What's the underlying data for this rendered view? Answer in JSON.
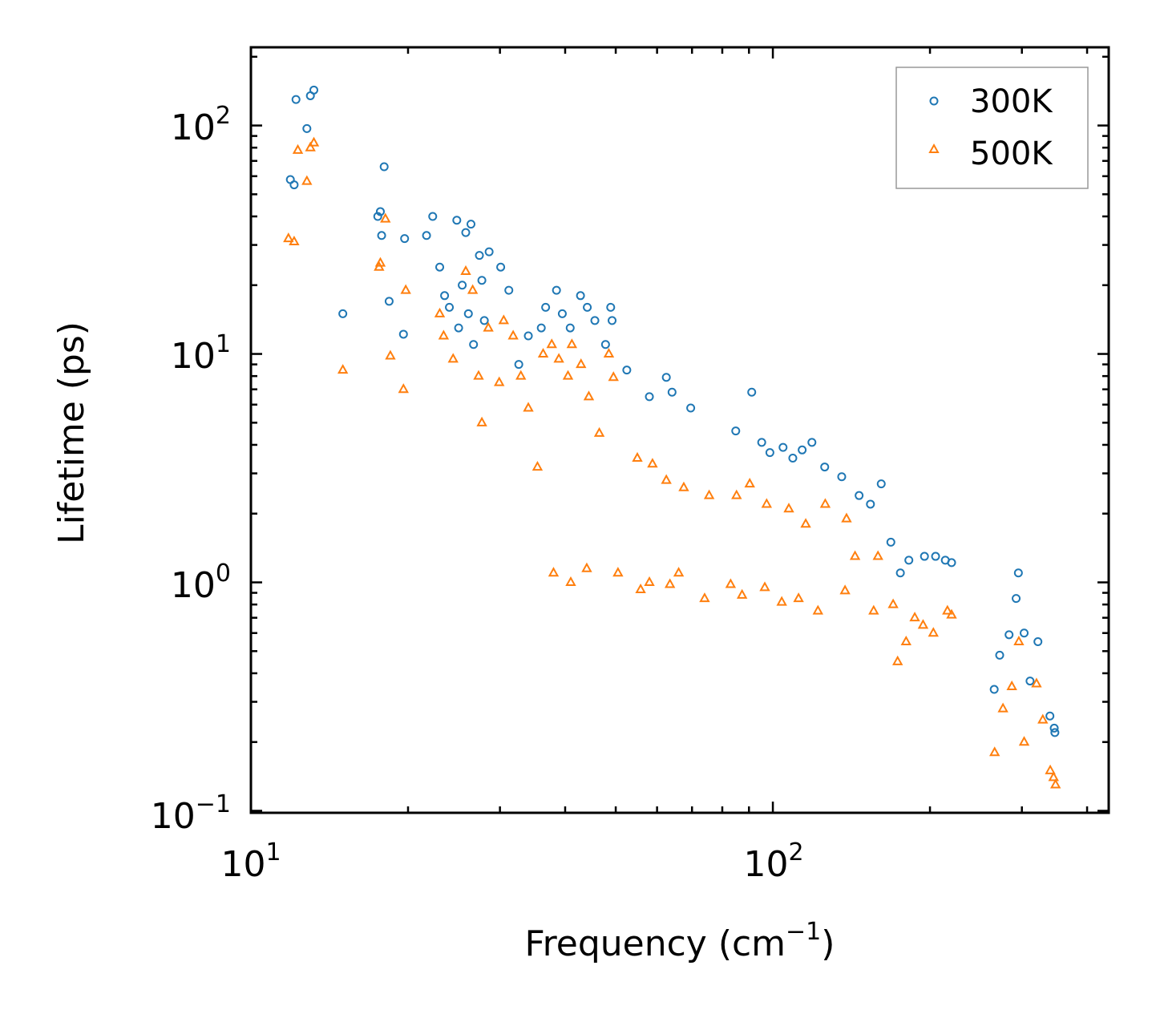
{
  "chart_data": {
    "type": "scatter",
    "title": "",
    "xlabel": "Frequency (cm",
    "xlabel_sup": "−1",
    "xlabel_tail": ")",
    "ylabel": "Lifetime (ps)",
    "xscale": "log",
    "yscale": "log",
    "xlim": [
      10,
      440
    ],
    "ylim": [
      0.098,
      220
    ],
    "x_ticks": [
      {
        "value": 10,
        "base": "10",
        "exp": "1"
      },
      {
        "value": 100,
        "base": "10",
        "exp": "2"
      }
    ],
    "y_ticks": [
      {
        "value": 0.1,
        "base": "10",
        "exp": "−1"
      },
      {
        "value": 1,
        "base": "10",
        "exp": "0"
      },
      {
        "value": 10,
        "base": "10",
        "exp": "1"
      },
      {
        "value": 100,
        "base": "10",
        "exp": "2"
      }
    ],
    "legend_position": "top-right",
    "series": [
      {
        "name": "300K",
        "marker": "circle",
        "color": "#1f77b4",
        "points": [
          [
            11.9,
            58
          ],
          [
            12.1,
            55
          ],
          [
            12.2,
            130
          ],
          [
            12.8,
            97
          ],
          [
            13.0,
            135
          ],
          [
            13.2,
            143
          ],
          [
            15.0,
            15
          ],
          [
            17.5,
            40
          ],
          [
            17.7,
            42
          ],
          [
            17.8,
            33
          ],
          [
            18.0,
            66
          ],
          [
            18.4,
            17
          ],
          [
            19.6,
            12.2
          ],
          [
            19.7,
            32
          ],
          [
            21.7,
            33
          ],
          [
            22.3,
            40
          ],
          [
            23.0,
            24
          ],
          [
            23.5,
            18
          ],
          [
            24.0,
            16
          ],
          [
            24.8,
            38.5
          ],
          [
            25.0,
            13
          ],
          [
            25.4,
            20
          ],
          [
            25.8,
            34
          ],
          [
            26.1,
            15
          ],
          [
            26.4,
            37
          ],
          [
            26.7,
            11
          ],
          [
            27.4,
            27
          ],
          [
            27.7,
            21
          ],
          [
            28.0,
            14
          ],
          [
            28.6,
            28
          ],
          [
            30.1,
            24
          ],
          [
            31.2,
            19
          ],
          [
            32.6,
            9
          ],
          [
            34.0,
            12
          ],
          [
            36.0,
            13
          ],
          [
            36.7,
            16
          ],
          [
            38.5,
            19
          ],
          [
            39.5,
            15
          ],
          [
            40.9,
            13
          ],
          [
            42.8,
            18
          ],
          [
            44.1,
            16
          ],
          [
            45.6,
            14
          ],
          [
            47.8,
            11
          ],
          [
            48.9,
            16
          ],
          [
            49.2,
            14
          ],
          [
            52.5,
            8.5
          ],
          [
            58.0,
            6.5
          ],
          [
            62.5,
            7.9
          ],
          [
            64.1,
            6.8
          ],
          [
            69.6,
            5.8
          ],
          [
            84.9,
            4.6
          ],
          [
            91.1,
            6.8
          ],
          [
            95.2,
            4.1
          ],
          [
            98.7,
            3.7
          ],
          [
            104.6,
            3.9
          ],
          [
            109.2,
            3.5
          ],
          [
            113.8,
            3.8
          ],
          [
            118.8,
            4.1
          ],
          [
            125.7,
            3.2
          ],
          [
            135.5,
            2.9
          ],
          [
            146.3,
            2.4
          ],
          [
            153.8,
            2.2
          ],
          [
            161.3,
            2.7
          ],
          [
            168.3,
            1.5
          ],
          [
            175.5,
            1.1
          ],
          [
            182.2,
            1.25
          ],
          [
            195.2,
            1.3
          ],
          [
            205.0,
            1.3
          ],
          [
            214.0,
            1.25
          ],
          [
            220.0,
            1.22
          ],
          [
            265.5,
            0.34
          ],
          [
            272.0,
            0.48
          ],
          [
            283.5,
            0.59
          ],
          [
            292.5,
            0.85
          ],
          [
            295.4,
            1.1
          ],
          [
            303.0,
            0.6
          ],
          [
            311.0,
            0.37
          ],
          [
            322.0,
            0.55
          ],
          [
            339.5,
            0.26
          ],
          [
            346.0,
            0.23
          ],
          [
            347.0,
            0.22
          ]
        ]
      },
      {
        "name": "500K",
        "marker": "triangle",
        "color": "#ff7f0e",
        "points": [
          [
            11.8,
            32
          ],
          [
            12.1,
            31
          ],
          [
            12.3,
            78
          ],
          [
            12.8,
            57
          ],
          [
            13.0,
            80
          ],
          [
            13.2,
            84
          ],
          [
            15.0,
            8.5
          ],
          [
            17.6,
            24
          ],
          [
            17.7,
            25
          ],
          [
            18.1,
            39
          ],
          [
            18.5,
            9.8
          ],
          [
            19.6,
            7
          ],
          [
            19.8,
            19
          ],
          [
            23.0,
            15
          ],
          [
            23.4,
            12
          ],
          [
            24.4,
            9.5
          ],
          [
            25.8,
            23
          ],
          [
            26.6,
            19
          ],
          [
            27.3,
            8
          ],
          [
            27.7,
            5
          ],
          [
            28.5,
            13
          ],
          [
            29.9,
            7.5
          ],
          [
            30.5,
            14
          ],
          [
            31.8,
            12
          ],
          [
            32.9,
            8
          ],
          [
            34.0,
            5.8
          ],
          [
            35.4,
            3.2
          ],
          [
            36.3,
            10
          ],
          [
            37.7,
            11
          ],
          [
            38.9,
            9.5
          ],
          [
            40.5,
            8
          ],
          [
            41.2,
            11
          ],
          [
            42.9,
            9
          ],
          [
            44.4,
            6.5
          ],
          [
            46.5,
            4.5
          ],
          [
            48.5,
            10
          ],
          [
            49.5,
            7.9
          ],
          [
            55.0,
            3.5
          ],
          [
            58.8,
            3.3
          ],
          [
            62.5,
            2.8
          ],
          [
            67.5,
            2.6
          ],
          [
            75.5,
            2.4
          ],
          [
            85.2,
            2.4
          ],
          [
            90.3,
            2.7
          ],
          [
            97.3,
            2.2
          ],
          [
            107.3,
            2.1
          ],
          [
            115.6,
            1.8
          ],
          [
            126.0,
            2.2
          ],
          [
            138.4,
            1.9
          ],
          [
            143.7,
            1.3
          ],
          [
            159.0,
            1.3
          ],
          [
            170.0,
            0.8
          ],
          [
            173.4,
            0.45
          ],
          [
            180.0,
            0.55
          ],
          [
            187.0,
            0.7
          ],
          [
            194.0,
            0.65
          ],
          [
            203.0,
            0.6
          ],
          [
            216.0,
            0.75
          ],
          [
            220.0,
            0.72
          ],
          [
            266.0,
            0.18
          ],
          [
            276.0,
            0.28
          ],
          [
            287.0,
            0.35
          ],
          [
            296.0,
            0.55
          ],
          [
            303.0,
            0.2
          ],
          [
            320.0,
            0.36
          ],
          [
            329.0,
            0.25
          ],
          [
            340.0,
            0.15
          ],
          [
            345.0,
            0.14
          ],
          [
            348.0,
            0.13
          ],
          [
            41.0,
            1.0
          ],
          [
            38.0,
            1.1
          ],
          [
            44.0,
            1.15
          ],
          [
            50.5,
            1.1
          ],
          [
            58.0,
            1.0
          ],
          [
            66.0,
            1.1
          ],
          [
            74.0,
            0.85
          ],
          [
            83.0,
            0.98
          ],
          [
            87.3,
            0.88
          ],
          [
            96.5,
            0.95
          ],
          [
            104.0,
            0.82
          ],
          [
            112.0,
            0.85
          ],
          [
            122.0,
            0.75
          ],
          [
            137.5,
            0.92
          ],
          [
            156.0,
            0.75
          ],
          [
            63.5,
            0.98
          ],
          [
            55.8,
            0.93
          ]
        ]
      }
    ]
  }
}
